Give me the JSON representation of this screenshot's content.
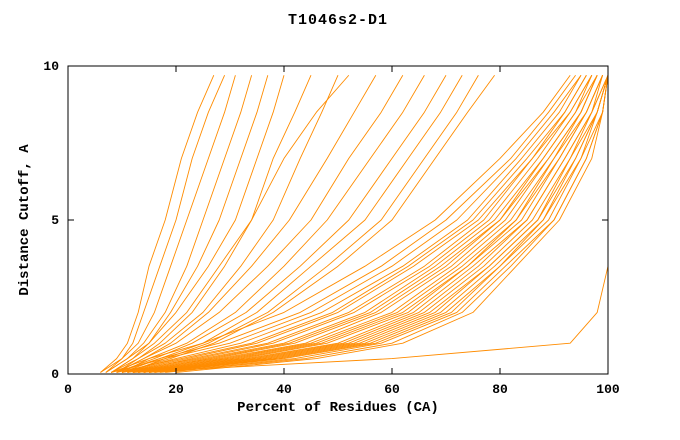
{
  "chart_data": {
    "type": "line",
    "title": "T1046s2-D1",
    "xlabel": "Percent of Residues (CA)",
    "ylabel": "Distance Cutoff, A",
    "xlim": [
      0,
      100
    ],
    "ylim": [
      0,
      10
    ],
    "x_ticks": [
      0,
      20,
      40,
      60,
      80,
      100
    ],
    "y_ticks": [
      0,
      5,
      10
    ],
    "grid": false,
    "legend": "none",
    "line_color": "#FF8C00",
    "background": "#FFFFFF",
    "y_levels": [
      0.05,
      0.5,
      1,
      2,
      3.5,
      5,
      7,
      8.5,
      9.7
    ],
    "series": [
      {
        "x": [
          6,
          9,
          11,
          13,
          15,
          18,
          21,
          24,
          27
        ]
      },
      {
        "x": [
          7,
          10,
          12,
          14,
          17,
          20,
          23,
          26,
          29
        ]
      },
      {
        "x": [
          6,
          10,
          13,
          16,
          19,
          22,
          26,
          29,
          31
        ]
      },
      {
        "x": [
          7,
          11,
          14,
          18,
          22,
          25,
          29,
          32,
          34
        ]
      },
      {
        "x": [
          8,
          12,
          15,
          19,
          24,
          28,
          32,
          35,
          37
        ]
      },
      {
        "x": [
          7,
          11,
          15,
          20,
          26,
          31,
          35,
          38,
          40
        ]
      },
      {
        "x": [
          8,
          13,
          17,
          23,
          29,
          34,
          38,
          42,
          45
        ]
      },
      {
        "x": [
          9,
          13,
          18,
          25,
          32,
          38,
          43,
          47,
          50
        ]
      },
      {
        "x": [
          8,
          12,
          16,
          22,
          28,
          34,
          40,
          46,
          52
        ]
      },
      {
        "x": [
          9,
          14,
          19,
          26,
          34,
          41,
          48,
          53,
          57
        ]
      },
      {
        "x": [
          9,
          14,
          20,
          28,
          37,
          45,
          52,
          58,
          62
        ]
      },
      {
        "x": [
          10,
          15,
          22,
          31,
          40,
          48,
          56,
          62,
          66
        ]
      },
      {
        "x": [
          9,
          16,
          23,
          33,
          43,
          52,
          60,
          66,
          70
        ]
      },
      {
        "x": [
          10,
          17,
          25,
          35,
          45,
          55,
          63,
          69,
          73
        ]
      },
      {
        "x": [
          11,
          18,
          26,
          37,
          48,
          58,
          66,
          72,
          76
        ]
      },
      {
        "x": [
          10,
          19,
          27,
          38,
          50,
          60,
          68,
          74,
          79
        ]
      },
      {
        "x": [
          8,
          15,
          25,
          40,
          55,
          68,
          80,
          88,
          93
        ]
      },
      {
        "x": [
          9,
          17,
          28,
          43,
          58,
          70,
          82,
          89,
          94
        ]
      },
      {
        "x": [
          8,
          18,
          30,
          45,
          60,
          72,
          83,
          90,
          95
        ]
      },
      {
        "x": [
          10,
          20,
          32,
          47,
          62,
          74,
          84,
          91,
          95
        ]
      },
      {
        "x": [
          9,
          21,
          34,
          49,
          63,
          75,
          85,
          92,
          96
        ]
      },
      {
        "x": [
          10,
          22,
          35,
          50,
          64,
          76,
          86,
          92,
          96
        ]
      },
      {
        "x": [
          11,
          23,
          37,
          52,
          66,
          77,
          86,
          93,
          97
        ]
      },
      {
        "x": [
          10,
          24,
          38,
          53,
          67,
          78,
          87,
          93,
          97
        ]
      },
      {
        "x": [
          11,
          25,
          40,
          55,
          68,
          79,
          88,
          94,
          97
        ]
      },
      {
        "x": [
          12,
          26,
          41,
          56,
          69,
          80,
          88,
          94,
          98
        ]
      },
      {
        "x": [
          11,
          27,
          42,
          57,
          70,
          80,
          89,
          95,
          98
        ]
      },
      {
        "x": [
          12,
          28,
          44,
          58,
          71,
          81,
          89,
          95,
          98
        ]
      },
      {
        "x": [
          13,
          29,
          45,
          60,
          72,
          82,
          90,
          95,
          98
        ]
      },
      {
        "x": [
          12,
          30,
          46,
          61,
          73,
          83,
          90,
          96,
          99
        ]
      },
      {
        "x": [
          13,
          31,
          47,
          62,
          74,
          83,
          91,
          96,
          99
        ]
      },
      {
        "x": [
          14,
          32,
          48,
          63,
          74,
          84,
          91,
          96,
          99
        ]
      },
      {
        "x": [
          13,
          33,
          50,
          64,
          75,
          85,
          92,
          97,
          99
        ]
      },
      {
        "x": [
          14,
          34,
          51,
          65,
          76,
          85,
          92,
          97,
          100
        ]
      },
      {
        "x": [
          15,
          35,
          52,
          66,
          77,
          86,
          93,
          97,
          100
        ]
      },
      {
        "x": [
          14,
          36,
          53,
          67,
          78,
          87,
          93,
          98,
          100
        ]
      },
      {
        "x": [
          15,
          37,
          54,
          68,
          78,
          87,
          94,
          98,
          100
        ]
      },
      {
        "x": [
          16,
          38,
          55,
          69,
          79,
          88,
          94,
          98,
          100
        ]
      },
      {
        "x": [
          15,
          39,
          56,
          70,
          80,
          88,
          95,
          98,
          100
        ]
      },
      {
        "x": [
          16,
          40,
          57,
          71,
          80,
          89,
          95,
          99,
          100
        ]
      },
      {
        "x": [
          17,
          42,
          58,
          72,
          81,
          90,
          96,
          99,
          100
        ]
      },
      {
        "x": [
          18,
          44,
          60,
          73,
          82,
          90,
          96,
          99,
          100
        ]
      },
      {
        "x": [
          20,
          46,
          62,
          75,
          83,
          91,
          97,
          99,
          100
        ]
      },
      {
        "x": [
          12,
          60,
          93,
          98,
          100,
          100,
          100,
          100,
          100
        ]
      }
    ]
  }
}
